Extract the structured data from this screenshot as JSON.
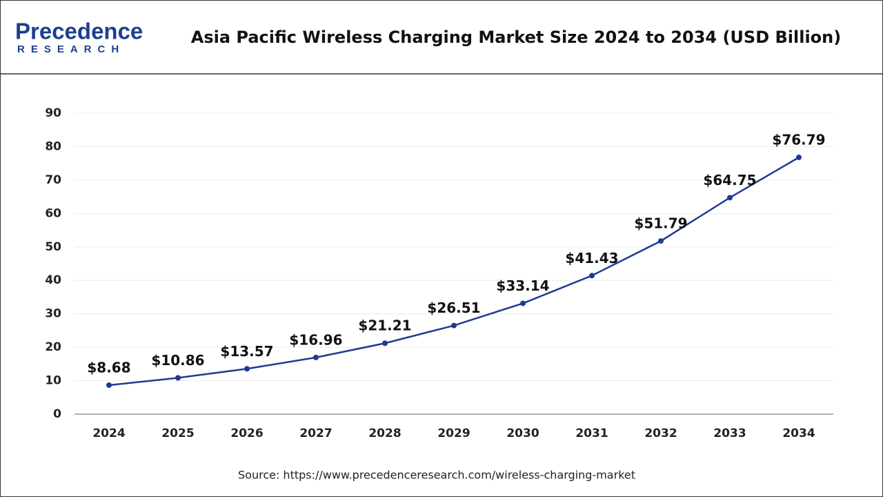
{
  "logo": {
    "name": "Precedence",
    "tagline": "RESEARCH"
  },
  "chart_data": {
    "type": "line",
    "title": "Asia Pacific Wireless Charging Market Size 2024 to 2034 (USD Billion)",
    "categories": [
      "2024",
      "2025",
      "2026",
      "2027",
      "2028",
      "2029",
      "2030",
      "2031",
      "2032",
      "2033",
      "2034"
    ],
    "series": [
      {
        "name": "Market Size",
        "color": "#1f3a93",
        "values": [
          8.68,
          10.86,
          13.57,
          16.96,
          21.21,
          26.51,
          33.14,
          41.43,
          51.79,
          64.75,
          76.79
        ],
        "value_labels": [
          "$8.68",
          "$10.86",
          "$13.57",
          "$16.96",
          "$21.21",
          "$26.51",
          "$33.14",
          "$41.43",
          "$51.79",
          "$64.75",
          "$76.79"
        ]
      }
    ],
    "ylim": [
      0,
      90
    ],
    "yticks": [
      0,
      10,
      20,
      30,
      40,
      50,
      60,
      70,
      80,
      90
    ],
    "grid": true
  },
  "source": "Source: https://www.precedenceresearch.com/wireless-charging-market"
}
